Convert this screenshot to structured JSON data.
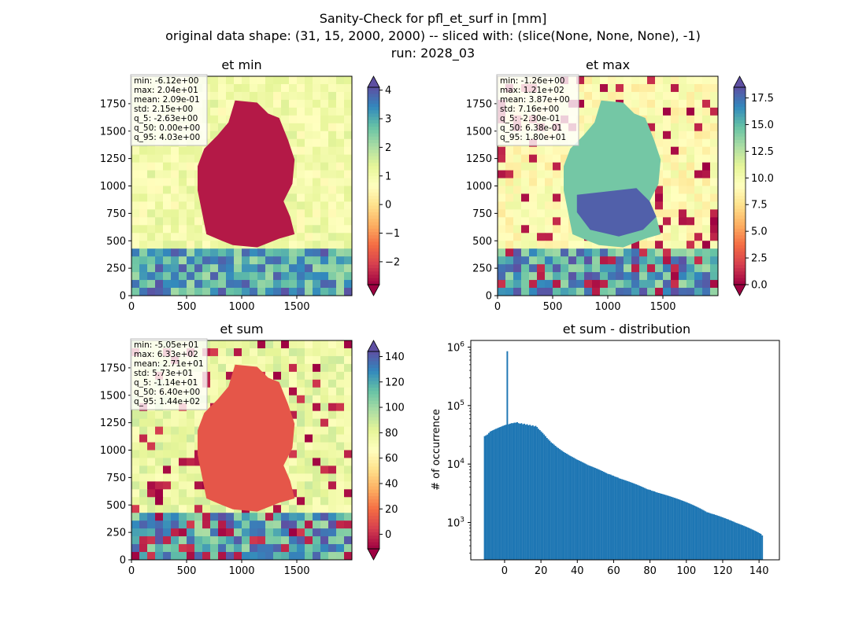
{
  "suptitle": [
    "Sanity-Check for pfl_et_surf in [mm]",
    "original data shape: (31, 15, 2000, 2000) -- sliced with: (slice(None, None, None), -1)",
    "run: 2028_03"
  ],
  "map_axis": {
    "xticks": [
      0,
      500,
      1000,
      1500
    ],
    "yticks": [
      0,
      250,
      500,
      750,
      1000,
      1250,
      1500,
      1750
    ]
  },
  "colors": {
    "cmap": [
      "#9e0142",
      "#d53e4f",
      "#f46d43",
      "#fdae61",
      "#fee08b",
      "#ffffbf",
      "#e6f598",
      "#abdda4",
      "#66c2a5",
      "#3288bd",
      "#5e4fa2"
    ],
    "bar": "#1f77b4"
  },
  "panels": [
    {
      "title": "et min",
      "stats": [
        "min: -6.12e+00",
        "max: 2.04e+01",
        "mean: 2.09e-01",
        "std: 2.15e+00",
        "q_5: -2.63e+00",
        "q_50: 0.00e+00",
        "q_95: 4.03e+00"
      ],
      "colorbar": {
        "range": [
          -2.8,
          4.1
        ],
        "ticks": [
          4,
          3,
          2,
          1,
          0,
          -1,
          -2
        ],
        "labels": [
          "4",
          "3",
          "2",
          "1",
          "0",
          "−1",
          "−2"
        ]
      },
      "background_level": 0.55,
      "region_level": 0.04
    },
    {
      "title": "et max",
      "stats": [
        "min: -1.26e+00",
        "max: 1.21e+02",
        "mean: 3.87e+00",
        "std: 7.16e+00",
        "q_5: -2.30e-01",
        "q_50: 6.38e-01",
        "q_95: 1.80e+01"
      ],
      "colorbar": {
        "range": [
          0,
          18.5
        ],
        "ticks": [
          17.5,
          15,
          12.5,
          10,
          7.5,
          5,
          2.5,
          0
        ],
        "labels": [
          "17.5",
          "15.0",
          "12.5",
          "10.0",
          "7.5",
          "5.0",
          "2.5",
          "0.0"
        ]
      },
      "background_level": 0.5,
      "region_level": 0.78
    },
    {
      "title": "et sum",
      "stats": [
        "min: -5.05e+01",
        "max: 6.33e+02",
        "mean: 2.71e+01",
        "std: 5.73e+01",
        "q_5: -1.14e+01",
        "q_50: 6.40e+00",
        "q_95: 1.44e+02"
      ],
      "colorbar": {
        "range": [
          -11.4,
          144
        ],
        "ticks": [
          140,
          120,
          100,
          80,
          60,
          40,
          20,
          0
        ],
        "labels": [
          "140",
          "120",
          "100",
          "80",
          "60",
          "40",
          "20",
          "0"
        ]
      },
      "background_level": 0.58,
      "region_level": 0.15
    }
  ],
  "chart_data": {
    "type": "bar",
    "title": "et sum - distribution",
    "ylabel": "# of occurrence",
    "yscale": "log",
    "ylim": [
      230,
      1300000
    ],
    "xlim": [
      -18.6,
      151.2
    ],
    "xticks": [
      0,
      20,
      40,
      60,
      80,
      100,
      120,
      140
    ],
    "yticks": [
      {
        "value": 1000,
        "label": "10",
        "exp": "3"
      },
      {
        "value": 10000,
        "label": "10",
        "exp": "4"
      },
      {
        "value": 100000,
        "label": "10",
        "exp": "5"
      },
      {
        "value": 1000000,
        "label": "10",
        "exp": "6"
      }
    ],
    "bin_start": -11.4,
    "bin_width": 0.7792,
    "counts": [
      30000,
      31000,
      32000,
      34000,
      36000,
      37000,
      38000,
      39000,
      40000,
      41000,
      42000,
      43000,
      44000,
      45000,
      46000,
      47000,
      850000,
      48000,
      49000,
      50000,
      50000,
      51000,
      51000,
      52000,
      50000,
      49000,
      50000,
      48000,
      49000,
      47000,
      48000,
      46000,
      47000,
      45000,
      46000,
      44000,
      45000,
      43000,
      40000,
      38000,
      36000,
      34000,
      32000,
      30000,
      28000,
      26500,
      25000,
      23500,
      22500,
      21500,
      20500,
      19500,
      18800,
      18000,
      17300,
      16700,
      16000,
      15500,
      15000,
      14500,
      14000,
      13600,
      13200,
      12800,
      12400,
      12000,
      11700,
      11400,
      11100,
      10800,
      10500,
      10200,
      9900,
      9600,
      9400,
      9200,
      9000,
      8800,
      8600,
      8400,
      8200,
      8000,
      7800,
      7600,
      7400,
      7200,
      7000,
      6800,
      6700,
      6600,
      6400,
      6300,
      6100,
      6000,
      5900,
      5700,
      5600,
      5500,
      5400,
      5300,
      5200,
      5100,
      5000,
      4900,
      4800,
      4700,
      4600,
      4500,
      4400,
      4300,
      4200,
      4100,
      4000,
      3900,
      3800,
      3700,
      3650,
      3600,
      3500,
      3450,
      3400,
      3300,
      3250,
      3200,
      3150,
      3100,
      3050,
      3000,
      2950,
      2900,
      2850,
      2800,
      2750,
      2700,
      2650,
      2600,
      2550,
      2500,
      2450,
      2400,
      2350,
      2300,
      2250,
      2200,
      2150,
      2100,
      2050,
      2000,
      1950,
      1900,
      1850,
      1800,
      1750,
      1700,
      1650,
      1600,
      1550,
      1500,
      1480,
      1450,
      1420,
      1400,
      1380,
      1350,
      1330,
      1300,
      1280,
      1250,
      1230,
      1200,
      1180,
      1150,
      1130,
      1100,
      1080,
      1050,
      1030,
      1000,
      980,
      960,
      940,
      920,
      900,
      880,
      860,
      840,
      820,
      800,
      780,
      760,
      740,
      720,
      700,
      680,
      660,
      640,
      600
    ]
  }
}
